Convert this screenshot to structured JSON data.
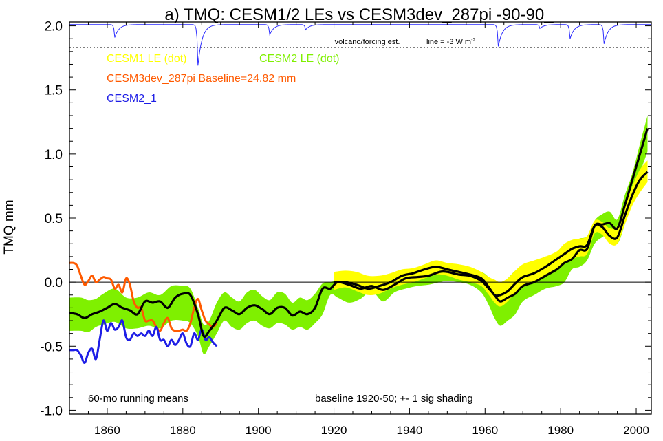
{
  "chart_data": {
    "type": "line",
    "title": "a) TMQ: CESM1/2 LEs vs CESM3dev_287pi -90-90_",
    "ylabel": "TMQ mm",
    "xlabel": "",
    "xlim": [
      1850,
      2004
    ],
    "ylim": [
      -1.03,
      2.03
    ],
    "x_ticks": [
      1860,
      1880,
      1900,
      1920,
      1940,
      1960,
      1980,
      2000
    ],
    "x_tick_labels": [
      "1860",
      "1880",
      "1900",
      "1920",
      "1940",
      "1960",
      "1980",
      "2000"
    ],
    "y_ticks": [
      -1.0,
      -0.5,
      0.0,
      0.5,
      1.0,
      1.5,
      2.0
    ],
    "y_tick_labels": [
      "-1.0",
      "-0.5",
      "0.0",
      "0.5",
      "1.0",
      "1.5",
      "2.0"
    ],
    "zero_line": true,
    "grid": false,
    "colors": {
      "cesm1": "#ffff00",
      "cesm2": "#7ff000",
      "cesm3dev": "#ff5a00",
      "cesm2_1": "#1e1ee6",
      "mean": "#000000",
      "volcano": "#2b2bff"
    },
    "legend": [
      {
        "key": "cesm1",
        "text": "CESM1 LE (dot)",
        "color": "#ffff00"
      },
      {
        "key": "cesm2",
        "text": "CESM2 LE (dot)",
        "color": "#7ff000"
      },
      {
        "key": "cesm3",
        "text": "CESM3dev_287pi Baseline=24.82 mm",
        "color": "#ff5a00"
      },
      {
        "key": "cesm21",
        "text": "CESM2_1",
        "color": "#1e1ee6"
      }
    ],
    "annotations": {
      "volcano_label": "volcano/forcing est.",
      "volcano_scale_prefix": "line = -3 W m",
      "volcano_scale_sup": "-2",
      "running_means": "60-mo running means",
      "baseline_note": "baseline 1920-50; +- 1 sig shading"
    },
    "volcano_forcing": {
      "baseline_y": 2.01,
      "scale_line_y": 1.83,
      "dips": [
        {
          "x": 1862,
          "depth": 0.1
        },
        {
          "x": 1884,
          "depth": 0.32
        },
        {
          "x": 1903,
          "depth": 0.08
        },
        {
          "x": 1912.5,
          "depth": 0.04
        },
        {
          "x": 1963.5,
          "depth": 0.17
        },
        {
          "x": 1974.5,
          "depth": 0.03
        },
        {
          "x": 1982.5,
          "depth": 0.11
        },
        {
          "x": 1991.5,
          "depth": 0.15
        }
      ]
    },
    "series": [
      {
        "name": "CESM2 LE (dot)",
        "role": "band",
        "color": "#7ff000",
        "x": [
          1850,
          1853,
          1855,
          1857,
          1859,
          1862,
          1865,
          1868,
          1871,
          1874,
          1877,
          1880,
          1882,
          1884,
          1885.5,
          1887,
          1889,
          1891,
          1893,
          1895,
          1897,
          1899,
          1901,
          1903,
          1905,
          1907,
          1909,
          1911,
          1913,
          1915,
          1917,
          1919,
          1921,
          1924,
          1927,
          1930,
          1933,
          1936,
          1939,
          1942,
          1945,
          1948,
          1950,
          1953,
          1956,
          1959,
          1961,
          1962.5,
          1964,
          1966,
          1968,
          1970,
          1973,
          1976,
          1979,
          1981,
          1983,
          1985,
          1987,
          1989,
          1991,
          1993,
          1995,
          1997,
          1999,
          2001,
          2003
        ],
        "upper": [
          -0.12,
          -0.12,
          -0.14,
          -0.13,
          -0.09,
          -0.05,
          -0.12,
          -0.12,
          -0.08,
          -0.1,
          -0.03,
          -0.03,
          -0.05,
          -0.2,
          -0.33,
          -0.3,
          -0.16,
          -0.08,
          -0.12,
          -0.15,
          -0.08,
          -0.06,
          -0.11,
          -0.14,
          -0.08,
          -0.09,
          -0.16,
          -0.12,
          -0.14,
          -0.09,
          -0.01,
          0.0,
          0.01,
          -0.02,
          -0.04,
          0.0,
          -0.01,
          0.03,
          0.07,
          0.08,
          0.09,
          0.1,
          0.12,
          0.11,
          0.09,
          0.08,
          0.04,
          0.0,
          -0.02,
          0.03,
          0.09,
          0.12,
          0.15,
          0.2,
          0.2,
          0.24,
          0.3,
          0.34,
          0.36,
          0.48,
          0.53,
          0.55,
          0.49,
          0.68,
          0.85,
          1.08,
          1.3
        ],
        "lower": [
          -0.38,
          -0.38,
          -0.39,
          -0.35,
          -0.33,
          -0.31,
          -0.36,
          -0.36,
          -0.34,
          -0.36,
          -0.3,
          -0.3,
          -0.32,
          -0.42,
          -0.56,
          -0.5,
          -0.4,
          -0.3,
          -0.35,
          -0.37,
          -0.32,
          -0.3,
          -0.34,
          -0.36,
          -0.32,
          -0.33,
          -0.37,
          -0.35,
          -0.37,
          -0.32,
          -0.25,
          -0.1,
          -0.12,
          -0.16,
          -0.13,
          -0.07,
          -0.15,
          -0.08,
          -0.05,
          -0.03,
          -0.02,
          0.0,
          0.01,
          0.0,
          -0.02,
          -0.08,
          -0.18,
          -0.28,
          -0.34,
          -0.3,
          -0.25,
          -0.15,
          -0.1,
          -0.05,
          -0.03,
          0.0,
          0.1,
          0.12,
          0.17,
          0.3,
          0.35,
          0.38,
          0.3,
          0.45,
          0.65,
          0.85,
          1.02
        ]
      },
      {
        "name": "CESM1 LE (dot)",
        "role": "band",
        "color": "#ffff00",
        "x": [
          1920,
          1923,
          1926,
          1929,
          1932,
          1935,
          1938,
          1941,
          1944,
          1947,
          1950,
          1953,
          1956,
          1959,
          1961,
          1962.5,
          1964,
          1966,
          1968,
          1970,
          1973,
          1976,
          1979,
          1981,
          1983,
          1985,
          1987,
          1989,
          1991,
          1993,
          1995,
          1997,
          1999,
          2001,
          2003
        ],
        "upper": [
          0.08,
          0.09,
          0.08,
          0.05,
          0.05,
          0.07,
          0.1,
          0.11,
          0.14,
          0.17,
          0.15,
          0.14,
          0.12,
          0.08,
          0.04,
          0.02,
          0.0,
          0.03,
          0.09,
          0.14,
          0.17,
          0.2,
          0.24,
          0.3,
          0.33,
          0.34,
          0.36,
          0.48,
          0.47,
          0.42,
          0.44,
          0.6,
          0.75,
          0.88,
          0.95
        ],
        "lower": [
          -0.06,
          -0.04,
          -0.07,
          -0.1,
          -0.09,
          -0.05,
          -0.02,
          0.0,
          0.03,
          0.06,
          0.05,
          0.02,
          0.0,
          -0.03,
          -0.1,
          -0.16,
          -0.19,
          -0.15,
          -0.08,
          -0.04,
          0.0,
          0.04,
          0.1,
          0.14,
          0.18,
          0.2,
          0.22,
          0.38,
          0.37,
          0.3,
          0.3,
          0.45,
          0.6,
          0.7,
          0.78
        ]
      },
      {
        "name": "CESM2 LE mean",
        "role": "mean",
        "color": "#000000",
        "x": [
          1850,
          1852,
          1854,
          1856,
          1858,
          1860,
          1862,
          1864,
          1866,
          1868,
          1870,
          1872,
          1874,
          1876,
          1878,
          1880,
          1882,
          1884,
          1885.5,
          1887,
          1889,
          1891,
          1893,
          1895,
          1897,
          1899,
          1901,
          1903,
          1905,
          1907,
          1909,
          1911,
          1913,
          1915,
          1917,
          1919,
          1921,
          1924,
          1927,
          1930,
          1933,
          1936,
          1939,
          1942,
          1945,
          1948,
          1950,
          1953,
          1956,
          1959,
          1961,
          1962.5,
          1964,
          1966,
          1968,
          1970,
          1973,
          1976,
          1979,
          1981,
          1983,
          1985,
          1987,
          1989,
          1991,
          1993,
          1995,
          1997,
          1999,
          2001,
          2003
        ],
        "y": [
          -0.24,
          -0.25,
          -0.28,
          -0.25,
          -0.23,
          -0.2,
          -0.17,
          -0.2,
          -0.22,
          -0.25,
          -0.15,
          -0.16,
          -0.15,
          -0.2,
          -0.12,
          -0.09,
          -0.1,
          -0.25,
          -0.42,
          -0.38,
          -0.3,
          -0.2,
          -0.22,
          -0.25,
          -0.2,
          -0.18,
          -0.21,
          -0.25,
          -0.2,
          -0.2,
          -0.26,
          -0.23,
          -0.25,
          -0.2,
          -0.05,
          -0.05,
          0.0,
          -0.02,
          -0.05,
          -0.03,
          -0.06,
          -0.02,
          0.03,
          0.04,
          0.05,
          0.08,
          0.08,
          0.06,
          0.05,
          0.01,
          -0.05,
          -0.1,
          -0.15,
          -0.12,
          -0.09,
          -0.03,
          0.0,
          0.05,
          0.1,
          0.15,
          0.18,
          0.25,
          0.26,
          0.44,
          0.45,
          0.46,
          0.42,
          0.6,
          0.8,
          1.0,
          1.2
        ]
      },
      {
        "name": "CESM1 LE mean",
        "role": "mean",
        "color": "#000000",
        "x": [
          1920,
          1923,
          1926,
          1929,
          1932,
          1935,
          1938,
          1941,
          1944,
          1947,
          1950,
          1953,
          1956,
          1959,
          1961,
          1962.5,
          1964,
          1966,
          1968,
          1970,
          1973,
          1976,
          1979,
          1981,
          1983,
          1985,
          1987,
          1989,
          1991,
          1993,
          1995,
          1997,
          1999,
          2001,
          2003
        ],
        "y": [
          0.0,
          0.0,
          -0.02,
          -0.05,
          -0.03,
          0.0,
          0.05,
          0.07,
          0.1,
          0.12,
          0.1,
          0.08,
          0.06,
          0.03,
          -0.04,
          -0.1,
          -0.1,
          -0.07,
          -0.01,
          0.04,
          0.07,
          0.12,
          0.18,
          0.22,
          0.26,
          0.28,
          0.29,
          0.44,
          0.43,
          0.36,
          0.35,
          0.52,
          0.68,
          0.8,
          0.86
        ]
      },
      {
        "name": "CESM3dev_287pi",
        "role": "line",
        "color": "#ff5a00",
        "x": [
          1850,
          1851,
          1852,
          1853,
          1854,
          1855,
          1856,
          1857,
          1858,
          1859,
          1860,
          1861,
          1862,
          1863,
          1864,
          1865,
          1866,
          1867,
          1868,
          1869,
          1870,
          1871,
          1872,
          1873,
          1874,
          1875,
          1876,
          1877,
          1878,
          1879,
          1880,
          1881,
          1882,
          1883,
          1884,
          1885,
          1886,
          1887,
          1888,
          1889
        ],
        "y": [
          0.15,
          0.15,
          0.13,
          0.05,
          -0.02,
          0.01,
          0.05,
          0.0,
          0.02,
          0.04,
          0.03,
          0.02,
          -0.05,
          -0.02,
          -0.08,
          0.03,
          -0.02,
          -0.15,
          -0.2,
          -0.2,
          -0.3,
          -0.3,
          -0.3,
          -0.35,
          -0.38,
          -0.32,
          -0.28,
          -0.36,
          -0.38,
          -0.38,
          -0.37,
          -0.38,
          -0.32,
          -0.2,
          -0.13,
          -0.22,
          -0.3,
          -0.33,
          -0.35,
          -0.32
        ]
      },
      {
        "name": "CESM2_1",
        "role": "line",
        "color": "#1e1ee6",
        "x": [
          1850,
          1851,
          1852,
          1853,
          1854,
          1855,
          1856,
          1857,
          1858,
          1859,
          1860,
          1861,
          1862,
          1863,
          1864,
          1865,
          1866,
          1867,
          1868,
          1869,
          1870,
          1871,
          1872,
          1873,
          1874,
          1875,
          1876,
          1877,
          1878,
          1879,
          1880,
          1881,
          1882,
          1883,
          1884,
          1885,
          1886,
          1887,
          1888,
          1889
        ],
        "y": [
          -0.53,
          -0.53,
          -0.53,
          -0.57,
          -0.63,
          -0.55,
          -0.52,
          -0.6,
          -0.45,
          -0.3,
          -0.38,
          -0.32,
          -0.37,
          -0.35,
          -0.3,
          -0.43,
          -0.45,
          -0.4,
          -0.42,
          -0.4,
          -0.42,
          -0.38,
          -0.42,
          -0.35,
          -0.45,
          -0.45,
          -0.5,
          -0.45,
          -0.49,
          -0.45,
          -0.4,
          -0.48,
          -0.5,
          -0.4,
          -0.45,
          -0.37,
          -0.45,
          -0.43,
          -0.47,
          -0.5
        ]
      }
    ]
  }
}
